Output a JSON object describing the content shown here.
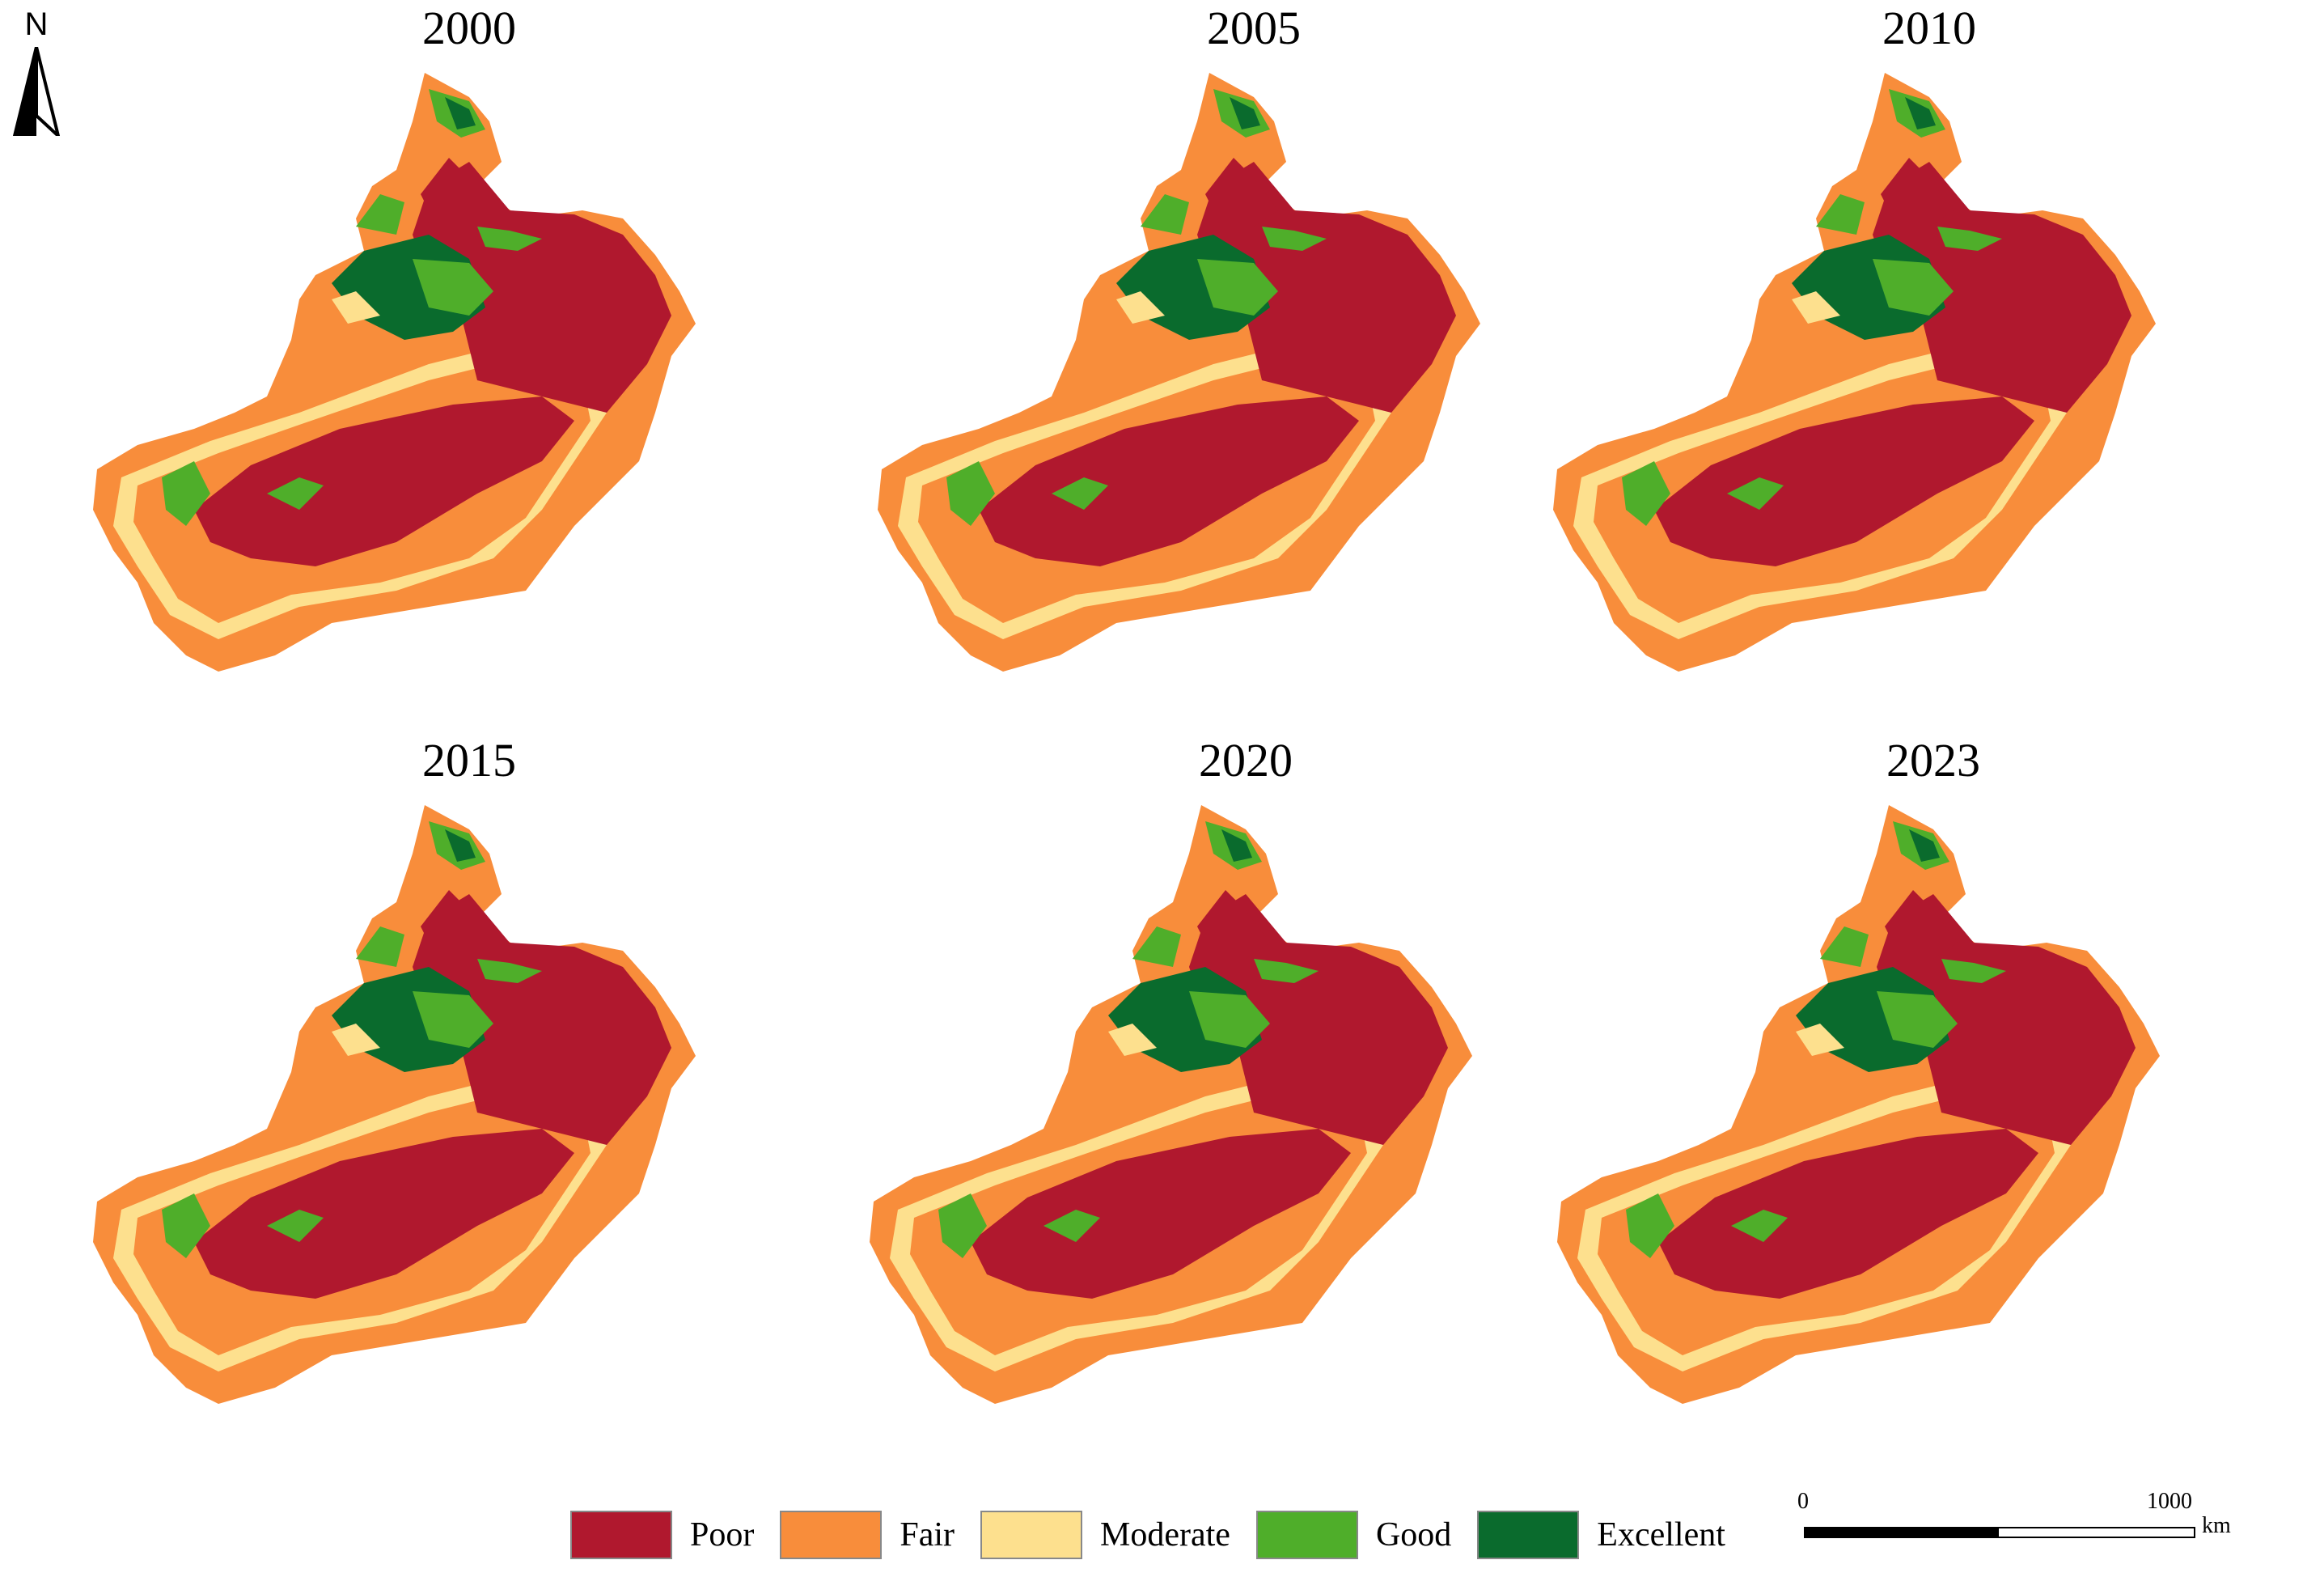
{
  "north": {
    "label": "N"
  },
  "panels": [
    {
      "year": "2000"
    },
    {
      "year": "2005"
    },
    {
      "year": "2010"
    },
    {
      "year": "2015"
    },
    {
      "year": "2020"
    },
    {
      "year": "2023"
    }
  ],
  "legend": {
    "items": [
      {
        "label": "Poor",
        "color": "#B0182E"
      },
      {
        "label": "Fair",
        "color": "#F88D3B"
      },
      {
        "label": "Moderate",
        "color": "#FDE08E"
      },
      {
        "label": "Good",
        "color": "#4FAE2A"
      },
      {
        "label": "Excellent",
        "color": "#0A6B2D"
      }
    ]
  },
  "scalebar": {
    "start": "0",
    "end": "1000",
    "unit": "km"
  }
}
